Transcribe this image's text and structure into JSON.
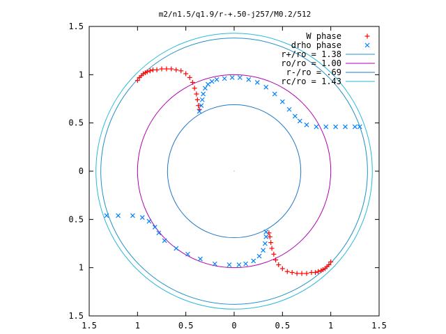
{
  "chart_data": {
    "type": "scatter",
    "title": "m2/n1.5/q1.9/r-+.50-j257/M0.2/512",
    "xlabel": "",
    "ylabel": "",
    "xlim": [
      -1.5,
      1.5
    ],
    "ylim": [
      -1.5,
      1.5
    ],
    "grid": false,
    "legend_position": "top-right",
    "x_ticks": [
      -1.5,
      -1,
      -0.5,
      0,
      0.5,
      1,
      1.5
    ],
    "y_ticks": [
      -1.5,
      -1,
      -0.5,
      0,
      0.5,
      1,
      1.5
    ],
    "x_tick_labels": [
      "1.5",
      "1",
      "0.5",
      "0",
      "0.5",
      "1",
      "1.5"
    ],
    "y_tick_labels": [
      "1.5",
      "1",
      "0.5",
      "0",
      "0.5",
      "1",
      "1.5"
    ],
    "legend": [
      {
        "label": "W phase",
        "marker": "+",
        "color": "#ff0000"
      },
      {
        "label": "drho phase",
        "marker": "x",
        "color": "#0080ff"
      },
      {
        "label": "r+/ro = 1.38",
        "marker": "line",
        "color": "#1e90c8"
      },
      {
        "label": "ro/ro = 1.00",
        "marker": "line",
        "color": "#b000b0"
      },
      {
        "label": "r-/ro = .69",
        "marker": "line",
        "color": "#1e78c8"
      },
      {
        "label": "rc/ro = 1.43",
        "marker": "line",
        "color": "#2ab8d8"
      }
    ],
    "circles": [
      {
        "label": "r+/ro = 1.38",
        "r": 1.38,
        "color": "#1e90c8"
      },
      {
        "label": "ro/ro = 1.00",
        "r": 1.0,
        "color": "#b000b0"
      },
      {
        "label": "r-/ro = .69",
        "r": 0.69,
        "color": "#1e78c8"
      },
      {
        "label": "rc/ro = 1.43",
        "r": 1.43,
        "color": "#2ab8d8"
      }
    ],
    "series": [
      {
        "name": "W phase",
        "marker": "+",
        "color": "#ff0000",
        "points": [
          [
            -1.0,
            0.94
          ],
          [
            -0.98,
            0.97
          ],
          [
            -0.96,
            0.99
          ],
          [
            -0.94,
            1.01
          ],
          [
            -0.92,
            1.02
          ],
          [
            -0.9,
            1.03
          ],
          [
            -0.87,
            1.04
          ],
          [
            -0.84,
            1.05
          ],
          [
            -0.8,
            1.05
          ],
          [
            -0.75,
            1.06
          ],
          [
            -0.7,
            1.06
          ],
          [
            -0.65,
            1.06
          ],
          [
            -0.6,
            1.05
          ],
          [
            -0.55,
            1.04
          ],
          [
            -0.5,
            1.01
          ],
          [
            -0.46,
            0.97
          ],
          [
            -0.43,
            0.92
          ],
          [
            -0.41,
            0.86
          ],
          [
            -0.39,
            0.8
          ],
          [
            -0.38,
            0.74
          ],
          [
            -0.37,
            0.68
          ],
          [
            -0.36,
            0.64
          ]
        ]
      },
      {
        "name": "drho phase",
        "marker": "x",
        "color": "#0080ff",
        "points": [
          [
            -0.36,
            0.62
          ],
          [
            -0.34,
            0.68
          ],
          [
            -0.33,
            0.74
          ],
          [
            -0.32,
            0.8
          ],
          [
            -0.3,
            0.86
          ],
          [
            -0.27,
            0.9
          ],
          [
            -0.23,
            0.93
          ],
          [
            -0.18,
            0.95
          ],
          [
            -0.1,
            0.96
          ],
          [
            -0.02,
            0.97
          ],
          [
            0.06,
            0.97
          ],
          [
            0.15,
            0.95
          ],
          [
            0.24,
            0.92
          ],
          [
            0.33,
            0.87
          ],
          [
            0.42,
            0.8
          ],
          [
            0.5,
            0.72
          ],
          [
            0.57,
            0.64
          ],
          [
            0.63,
            0.57
          ],
          [
            0.68,
            0.52
          ],
          [
            0.75,
            0.48
          ],
          [
            0.85,
            0.46
          ],
          [
            0.95,
            0.46
          ],
          [
            1.05,
            0.46
          ],
          [
            1.15,
            0.46
          ],
          [
            1.25,
            0.46
          ],
          [
            1.3,
            0.46
          ],
          [
            -1.32,
            -0.46
          ],
          [
            -1.2,
            -0.46
          ],
          [
            -1.05,
            -0.46
          ],
          [
            -0.95,
            -0.48
          ],
          [
            -0.88,
            -0.52
          ],
          [
            -0.82,
            -0.58
          ],
          [
            -0.78,
            -0.64
          ],
          [
            -0.72,
            -0.72
          ],
          [
            -0.6,
            -0.8
          ],
          [
            -0.48,
            -0.86
          ],
          [
            -0.35,
            -0.91
          ],
          [
            -0.2,
            -0.96
          ],
          [
            -0.05,
            -0.97
          ],
          [
            0.05,
            -0.97
          ],
          [
            0.12,
            -0.96
          ],
          [
            0.2,
            -0.93
          ],
          [
            0.26,
            -0.88
          ],
          [
            0.3,
            -0.82
          ],
          [
            0.32,
            -0.75
          ],
          [
            0.33,
            -0.68
          ],
          [
            0.33,
            -0.63
          ]
        ]
      }
    ]
  }
}
